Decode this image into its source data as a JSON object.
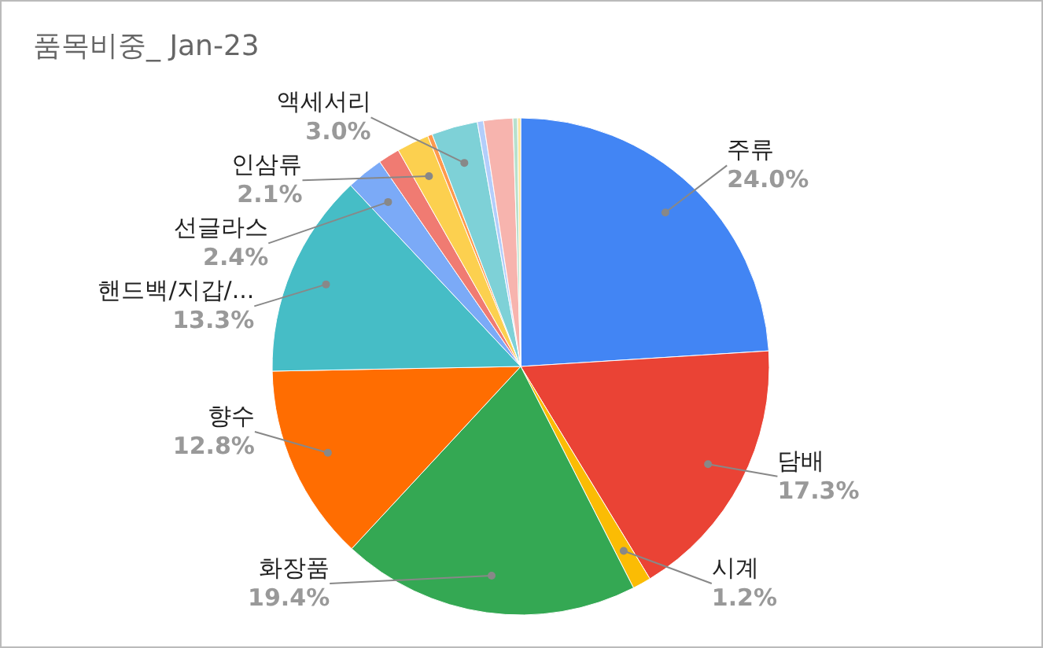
{
  "chart_data": {
    "type": "pie",
    "title": "품목비중_ Jan-23",
    "categories": [
      "주류",
      "담배",
      "시계",
      "화장품",
      "향수",
      "핸드백/지갑/...",
      "선글라스",
      null,
      "인삼류",
      null,
      "액세서리",
      null,
      null,
      null,
      null
    ],
    "values": [
      24.0,
      17.3,
      1.2,
      19.4,
      12.8,
      13.3,
      2.4,
      1.4,
      2.1,
      0.3,
      3.0,
      0.4,
      1.9,
      0.3,
      0.2
    ],
    "value_labels": [
      "24.0%",
      "17.3%",
      "1.2%",
      "19.4%",
      "12.8%",
      "13.3%",
      "2.4%",
      null,
      "2.1%",
      null,
      "3.0%",
      null,
      null,
      null,
      null
    ],
    "colors": [
      "#4285f4",
      "#ea4335",
      "#fbbc04",
      "#34a853",
      "#ff6d01",
      "#46bdc6",
      "#7baaf7",
      "#f07b72",
      "#fcd04f",
      "#ff994d",
      "#7ed1d7",
      "#b3cefb",
      "#f7b4ae",
      "#b7e1cd",
      "#fde49b"
    ],
    "legend": false
  }
}
